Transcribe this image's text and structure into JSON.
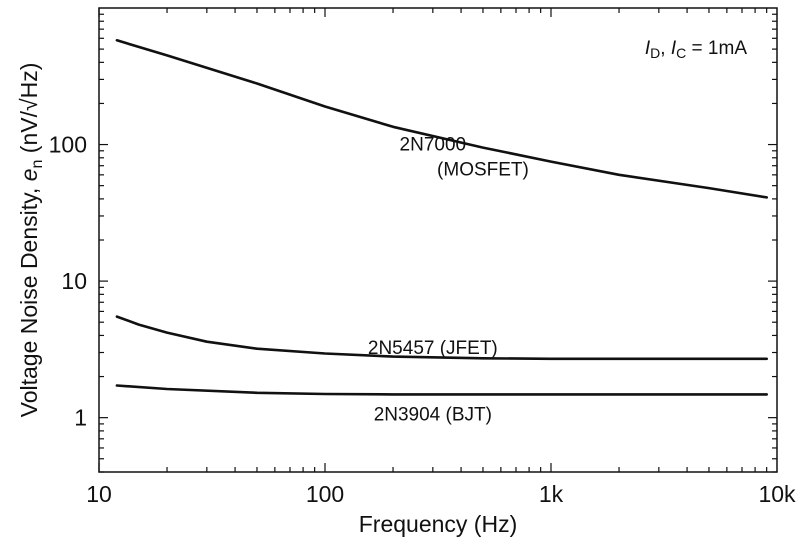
{
  "chart_data": {
    "type": "line",
    "xlabel": "Frequency (Hz)",
    "ylabel": {
      "prefix": "Voltage Noise Density, ",
      "symbol": "e",
      "subscript": "n",
      "unit": "(nV/√Hz)"
    },
    "xscale": "log",
    "yscale": "log",
    "xlim": [
      10,
      10000
    ],
    "ylim": [
      0.4,
      1000
    ],
    "x_ticks": [
      10,
      100,
      1000,
      10000
    ],
    "x_tick_labels": [
      "10",
      "100",
      "1k",
      "10k"
    ],
    "y_ticks": [
      1,
      10,
      100
    ],
    "y_tick_labels": [
      "1",
      "10",
      "100"
    ],
    "grid": false,
    "condition": {
      "var1": "I",
      "sub1": "D",
      "sep": ", ",
      "var2": "I",
      "sub2": "C",
      "rest": " = 1mA"
    },
    "series": [
      {
        "name": "2N7000 (MOSFET)",
        "label_lines": [
          "2N7000",
          "(MOSFET)"
        ],
        "x": [
          12,
          20,
          50,
          100,
          200,
          500,
          1000,
          2000,
          5000,
          9000
        ],
        "y": [
          580,
          450,
          280,
          190,
          135,
          95,
          75,
          60,
          48,
          41
        ]
      },
      {
        "name": "2N5457 (JFET)",
        "label_lines": [
          "2N5457 (JFET)"
        ],
        "x": [
          12,
          15,
          20,
          30,
          50,
          100,
          200,
          500,
          1000,
          2000,
          5000,
          9000
        ],
        "y": [
          5.5,
          4.8,
          4.2,
          3.6,
          3.2,
          2.95,
          2.8,
          2.72,
          2.7,
          2.7,
          2.7,
          2.7
        ],
        "label_y": 3.3
      },
      {
        "name": "2N3904 (BJT)",
        "label_lines": [
          "2N3904 (BJT)"
        ],
        "x": [
          12,
          20,
          50,
          100,
          200,
          500,
          1000,
          2000,
          5000,
          9000
        ],
        "y": [
          1.72,
          1.62,
          1.52,
          1.49,
          1.48,
          1.48,
          1.48,
          1.48,
          1.48,
          1.48
        ],
        "label_y": 1.07
      }
    ]
  }
}
